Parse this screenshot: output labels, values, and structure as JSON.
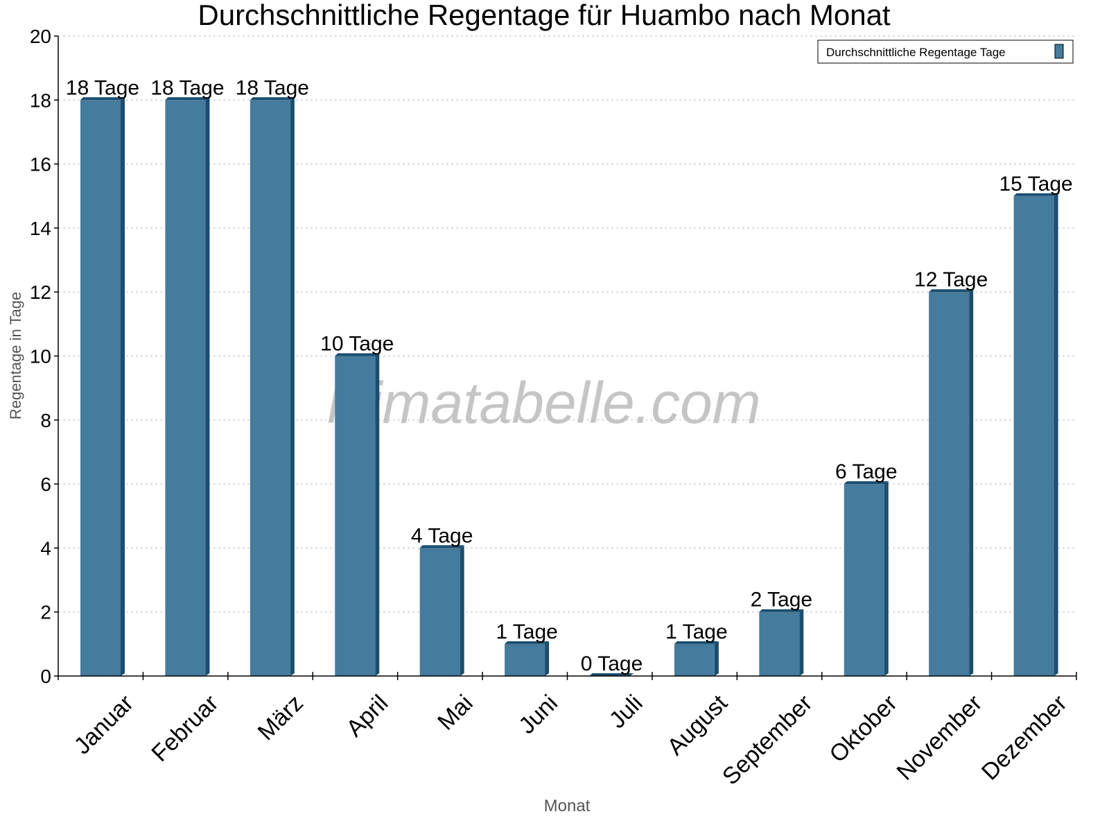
{
  "chart_data": {
    "type": "bar",
    "title": "Durchschnittliche Regentage für Huambo nach Monat",
    "xlabel": "Monat",
    "ylabel": "Regentage in Tage",
    "ylim": [
      0,
      20
    ],
    "yticks": [
      0,
      2,
      4,
      6,
      8,
      10,
      12,
      14,
      16,
      18,
      20
    ],
    "grid": true,
    "legend": {
      "position": "top-right",
      "entries": [
        "Durchschnittliche Regentage Tage"
      ]
    },
    "categories": [
      "Januar",
      "Februar",
      "März",
      "April",
      "Mai",
      "Juni",
      "Juli",
      "August",
      "September",
      "Oktober",
      "November",
      "Dezember"
    ],
    "series": [
      {
        "name": "Durchschnittliche Regentage Tage",
        "values": [
          18,
          18,
          18,
          10,
          4,
          1,
          0,
          1,
          2,
          6,
          12,
          15
        ]
      }
    ],
    "data_labels": [
      "18 Tage",
      "18 Tage",
      "18 Tage",
      "10 Tage",
      "4 Tage",
      "1 Tage",
      "0 Tage",
      "1 Tage",
      "2 Tage",
      "6 Tage",
      "12 Tage",
      "15 Tage"
    ],
    "watermark": "klimatabelle.com"
  },
  "colors": {
    "bar": "#457b9d",
    "bar_side": "#1b4d6e",
    "grid": "#bbbbbb",
    "axis_label": "#555555"
  }
}
